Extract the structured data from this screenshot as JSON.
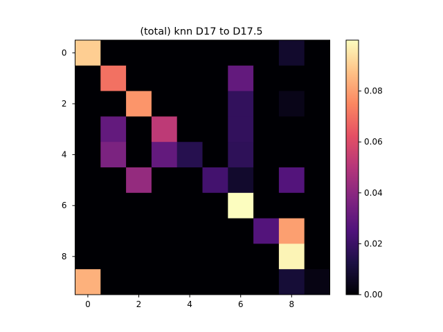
{
  "chart_data": {
    "type": "heatmap",
    "title": "(total) knn D17 to D17.5",
    "xlabel": "",
    "ylabel": "",
    "rows": 10,
    "cols": 10,
    "x_ticks": [
      "0",
      "2",
      "4",
      "6",
      "8"
    ],
    "y_ticks": [
      "0",
      "2",
      "4",
      "6",
      "8"
    ],
    "colormap": "magma",
    "vmin": 0.0,
    "vmax": 0.1,
    "colorbar_ticks": [
      "0.00",
      "0.02",
      "0.04",
      "0.06",
      "0.08"
    ],
    "values": [
      [
        0.09,
        0,
        0,
        0,
        0,
        0,
        0,
        0,
        0.008,
        0
      ],
      [
        0,
        0.07,
        0,
        0,
        0,
        0,
        0.03,
        0,
        0,
        0
      ],
      [
        0,
        0,
        0.078,
        0,
        0,
        0,
        0.018,
        0,
        0.004,
        0
      ],
      [
        0,
        0.03,
        0,
        0.052,
        0,
        0,
        0.018,
        0,
        0,
        0
      ],
      [
        0,
        0.036,
        0,
        0.03,
        0.015,
        0,
        0.017,
        0,
        0,
        0
      ],
      [
        0,
        0,
        0.042,
        0,
        0,
        0.022,
        0.008,
        0,
        0.026,
        0
      ],
      [
        0,
        0,
        0,
        0,
        0,
        0,
        0.1,
        0,
        0,
        0
      ],
      [
        0,
        0,
        0,
        0,
        0,
        0,
        0,
        0.026,
        0.08,
        0
      ],
      [
        0,
        0,
        0,
        0,
        0,
        0,
        0,
        0,
        0.098,
        0
      ],
      [
        0.084,
        0,
        0,
        0,
        0,
        0,
        0,
        0,
        0.01,
        0.003
      ]
    ]
  }
}
